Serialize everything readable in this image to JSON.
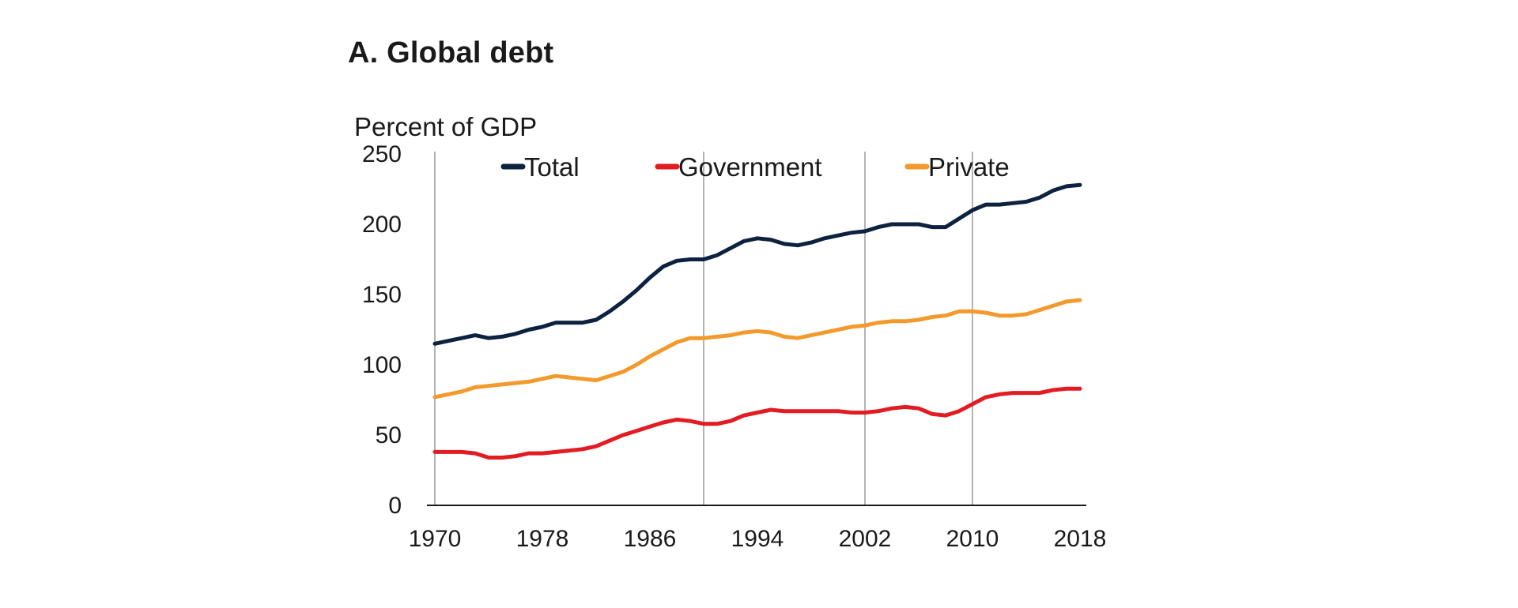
{
  "chart_data": {
    "type": "line",
    "title": "A. Global debt",
    "ylabel": "Percent of GDP",
    "xlabel": "",
    "ylim": [
      0,
      250
    ],
    "xlim": [
      1970,
      2018
    ],
    "yticks": [
      0,
      50,
      100,
      150,
      200,
      250
    ],
    "xticks": [
      1970,
      1978,
      1986,
      1994,
      2002,
      2010,
      2018
    ],
    "vlines": [
      1970,
      1990,
      2002,
      2010
    ],
    "legend_position": "top",
    "x": [
      1970,
      1971,
      1972,
      1973,
      1974,
      1975,
      1976,
      1977,
      1978,
      1979,
      1980,
      1981,
      1982,
      1983,
      1984,
      1985,
      1986,
      1987,
      1988,
      1989,
      1990,
      1991,
      1992,
      1993,
      1994,
      1995,
      1996,
      1997,
      1998,
      1999,
      2000,
      2001,
      2002,
      2003,
      2004,
      2005,
      2006,
      2007,
      2008,
      2009,
      2010,
      2011,
      2012,
      2013,
      2014,
      2015,
      2016,
      2017,
      2018
    ],
    "series": [
      {
        "name": "Total",
        "color": "#0d2240",
        "values": [
          115,
          117,
          119,
          121,
          119,
          120,
          122,
          125,
          127,
          130,
          130,
          130,
          132,
          138,
          145,
          153,
          162,
          170,
          174,
          175,
          175,
          178,
          183,
          188,
          190,
          189,
          186,
          185,
          187,
          190,
          192,
          194,
          195,
          198,
          200,
          200,
          200,
          198,
          198,
          204,
          210,
          214,
          214,
          215,
          216,
          219,
          224,
          227,
          228
        ]
      },
      {
        "name": "Government",
        "color": "#e31b23",
        "values": [
          38,
          38,
          38,
          37,
          34,
          34,
          35,
          37,
          37,
          38,
          39,
          40,
          42,
          46,
          50,
          53,
          56,
          59,
          61,
          60,
          58,
          58,
          60,
          64,
          66,
          68,
          67,
          67,
          67,
          67,
          67,
          66,
          66,
          67,
          69,
          70,
          69,
          65,
          64,
          67,
          72,
          77,
          79,
          80,
          80,
          80,
          82,
          83,
          83
        ]
      },
      {
        "name": "Private",
        "color": "#f39a2d",
        "values": [
          77,
          79,
          81,
          84,
          85,
          86,
          87,
          88,
          90,
          92,
          91,
          90,
          89,
          92,
          95,
          100,
          106,
          111,
          116,
          119,
          119,
          120,
          121,
          123,
          124,
          123,
          120,
          119,
          121,
          123,
          125,
          127,
          128,
          130,
          131,
          131,
          132,
          134,
          135,
          138,
          138,
          137,
          135,
          135,
          136,
          139,
          142,
          145,
          146
        ]
      }
    ]
  }
}
